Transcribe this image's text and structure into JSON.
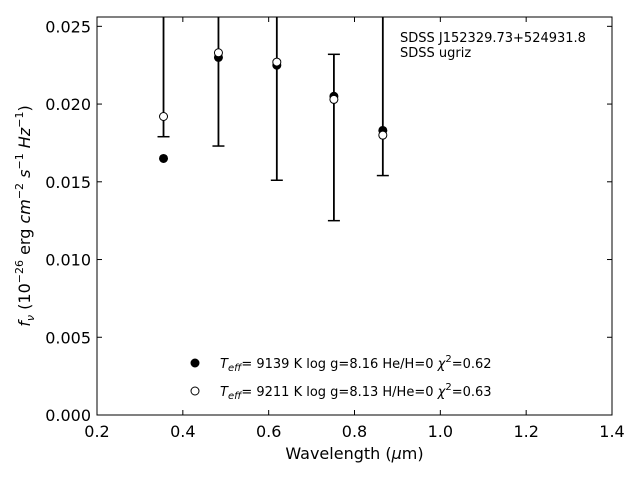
{
  "chart_data": {
    "type": "scatter",
    "title": "",
    "xlabel": "Wavelength (μm)",
    "ylabel": "f_ν (10^-26 erg cm^-2 s^-1 Hz^-1)",
    "xlim": [
      0.2,
      1.4
    ],
    "ylim": [
      0.0,
      0.0256
    ],
    "xticks": [
      "0.2",
      "0.4",
      "0.6",
      "0.8",
      "1.0",
      "1.2",
      "1.4"
    ],
    "xtick_values": [
      0.2,
      0.4,
      0.6,
      0.8,
      1.0,
      1.2,
      1.4
    ],
    "yticks": [
      "0.000",
      "0.005",
      "0.010",
      "0.015",
      "0.020",
      "0.025"
    ],
    "ytick_values": [
      0.0,
      0.005,
      0.01,
      0.015,
      0.02,
      0.025
    ],
    "grid": false,
    "legend_position": "bottom-center",
    "annotations": [
      "SDSS J152329.73+524931.8",
      "SDSS ugriz"
    ],
    "observed": {
      "x": [
        0.355,
        0.483,
        0.619,
        0.752,
        0.866
      ],
      "y": [
        0.0192,
        0.0233,
        0.0227,
        0.0203,
        0.018
      ],
      "yerr_low": [
        0.0179,
        0.0173,
        0.0151,
        0.0125,
        0.0154
      ],
      "yerr_high": [
        0.03,
        0.03,
        0.03,
        0.0232,
        0.03
      ]
    },
    "series": [
      {
        "name": "T_eff= 9139 K log g=8.16 He/H=0 χ²=0.62",
        "marker": "filled-circle",
        "x": [
          0.355,
          0.483,
          0.619,
          0.752,
          0.866
        ],
        "y": [
          0.0165,
          0.023,
          0.0225,
          0.0205,
          0.0183
        ]
      },
      {
        "name": "T_eff= 9211 K log g=8.13 H/He=0 χ²=0.63",
        "marker": "open-circle",
        "x": [
          0.355,
          0.483,
          0.619,
          0.752,
          0.866
        ],
        "y": [
          0.0192,
          0.0233,
          0.0227,
          0.0203,
          0.018
        ]
      }
    ]
  }
}
